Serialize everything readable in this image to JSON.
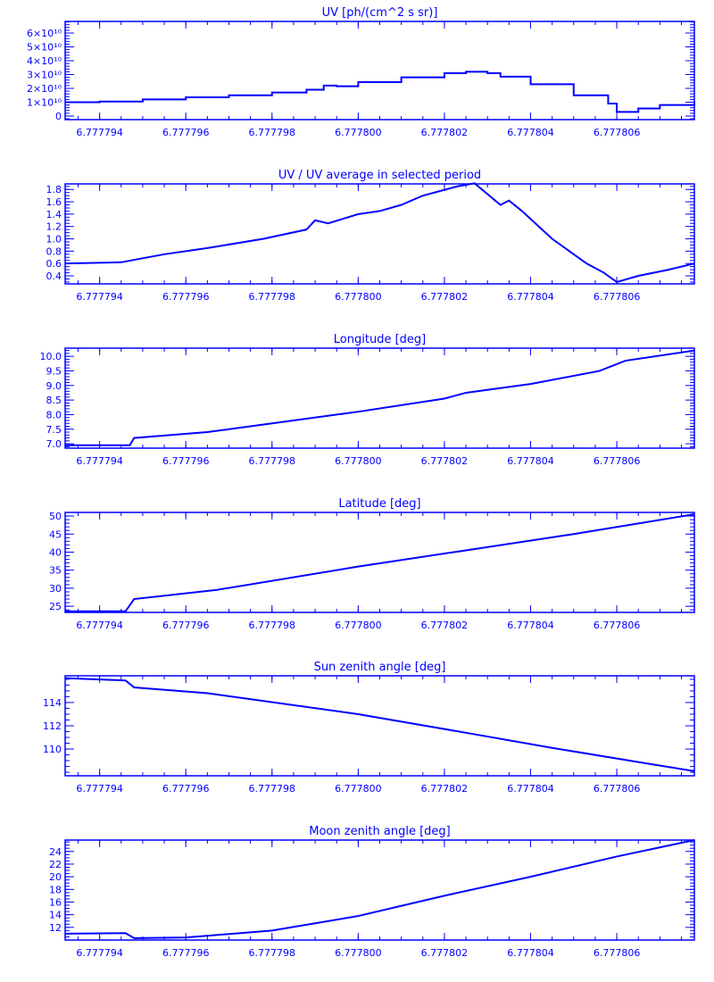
{
  "colors": {
    "ink": "#0000ff",
    "background": "#ffffff"
  },
  "chart_data": [
    {
      "type": "line",
      "step": true,
      "title": "UV [ph/(cm^2 s sr)]",
      "xlim": [
        6.7777932,
        6.7778078
      ],
      "ylim": [
        -0.26,
        6.84
      ],
      "y_scale_note": "values in units of 1e10",
      "xticks": [
        "6.777794",
        "6.777796",
        "6.777798",
        "6.777800",
        "6.777802",
        "6.777804",
        "6.777806"
      ],
      "yticks": [
        {
          "v": 0,
          "label": "0"
        },
        {
          "v": 1,
          "label": "1×10¹⁰"
        },
        {
          "v": 2,
          "label": "2×10¹⁰"
        },
        {
          "v": 3,
          "label": "3×10¹⁰"
        },
        {
          "v": 4,
          "label": "4×10¹⁰"
        },
        {
          "v": 5,
          "label": "5×10¹⁰"
        },
        {
          "v": 6,
          "label": "6×10¹⁰"
        }
      ],
      "yminor": 0.2,
      "x": [
        6.7777932,
        6.777794,
        6.777795,
        6.777796,
        6.777797,
        6.777798,
        6.7777988,
        6.7777992,
        6.7777995,
        6.7778,
        6.777801,
        6.777802,
        6.7778025,
        6.777803,
        6.7778033,
        6.777804,
        6.777805,
        6.7778058,
        6.777806,
        6.7778065,
        6.777807,
        6.7778078
      ],
      "y": [
        1.0,
        1.05,
        1.2,
        1.35,
        1.5,
        1.7,
        1.9,
        2.2,
        2.15,
        2.45,
        2.8,
        3.1,
        3.2,
        3.1,
        2.85,
        2.3,
        1.5,
        0.9,
        0.3,
        0.55,
        0.8,
        1.05
      ]
    },
    {
      "type": "line",
      "title": "UV / UV average in selected period",
      "xlim": [
        6.7777932,
        6.7778078
      ],
      "ylim": [
        0.27,
        1.89
      ],
      "xticks": [
        "6.777794",
        "6.777796",
        "6.777798",
        "6.777800",
        "6.777802",
        "6.777804",
        "6.777806"
      ],
      "yticks": [
        {
          "v": 0.4,
          "label": "0.4"
        },
        {
          "v": 0.6,
          "label": "0.6"
        },
        {
          "v": 0.8,
          "label": "0.8"
        },
        {
          "v": 1.0,
          "label": "1.0"
        },
        {
          "v": 1.2,
          "label": "1.2"
        },
        {
          "v": 1.4,
          "label": "1.4"
        },
        {
          "v": 1.6,
          "label": "1.6"
        },
        {
          "v": 1.8,
          "label": "1.8"
        }
      ],
      "yminor": 0.05,
      "x": [
        6.7777932,
        6.7777945,
        6.7777955,
        6.7777965,
        6.7777978,
        6.7777988,
        6.777799,
        6.7777993,
        6.7778,
        6.7778005,
        6.777801,
        6.7778015,
        6.7778023,
        6.7778027,
        6.7778033,
        6.7778035,
        6.7778038,
        6.7778045,
        6.7778053,
        6.7778057,
        6.777806,
        6.7778065,
        6.7778072,
        6.7778078
      ],
      "y": [
        0.6,
        0.62,
        0.75,
        0.85,
        1.0,
        1.15,
        1.3,
        1.25,
        1.4,
        1.45,
        1.55,
        1.7,
        1.85,
        1.9,
        1.55,
        1.62,
        1.45,
        1.0,
        0.6,
        0.45,
        0.3,
        0.4,
        0.5,
        0.6
      ]
    },
    {
      "type": "line",
      "title": "Longitude [deg]",
      "xlim": [
        6.7777932,
        6.7778078
      ],
      "ylim": [
        6.85,
        10.28
      ],
      "xticks": [
        "6.777794",
        "6.777796",
        "6.777798",
        "6.777800",
        "6.777802",
        "6.777804",
        "6.777806"
      ],
      "yticks": [
        {
          "v": 7.0,
          "label": "7.0"
        },
        {
          "v": 7.5,
          "label": "7.5"
        },
        {
          "v": 8.0,
          "label": "8.0"
        },
        {
          "v": 8.5,
          "label": "8.5"
        },
        {
          "v": 9.0,
          "label": "9.0"
        },
        {
          "v": 9.5,
          "label": "9.5"
        },
        {
          "v": 10.0,
          "label": "10.0"
        }
      ],
      "yminor": 0.1,
      "x": [
        6.7777932,
        6.7777947,
        6.7777948,
        6.7777965,
        6.777798,
        6.7778,
        6.777802,
        6.7778025,
        6.777804,
        6.7778056,
        6.7778062,
        6.7778078
      ],
      "y": [
        6.95,
        6.95,
        7.2,
        7.4,
        7.7,
        8.1,
        8.55,
        8.75,
        9.05,
        9.5,
        9.85,
        10.2
      ]
    },
    {
      "type": "line",
      "title": "Latitude [deg]",
      "xlim": [
        6.7777932,
        6.7778078
      ],
      "ylim": [
        23.3,
        51
      ],
      "xticks": [
        "6.777794",
        "6.777796",
        "6.777798",
        "6.777800",
        "6.777802",
        "6.777804",
        "6.777806"
      ],
      "yticks": [
        {
          "v": 25,
          "label": "25"
        },
        {
          "v": 30,
          "label": "30"
        },
        {
          "v": 35,
          "label": "35"
        },
        {
          "v": 40,
          "label": "40"
        },
        {
          "v": 45,
          "label": "45"
        },
        {
          "v": 50,
          "label": "50"
        }
      ],
      "yminor": 1,
      "x": [
        6.7777932,
        6.7777946,
        6.7777948,
        6.7777967,
        6.7778,
        6.7778025,
        6.777805,
        6.7778078
      ],
      "y": [
        23.6,
        23.6,
        27,
        29.5,
        36,
        40.5,
        45,
        50.5
      ]
    },
    {
      "type": "line",
      "title": "Sun zenith angle [deg]",
      "xlim": [
        6.7777932,
        6.7778078
      ],
      "ylim": [
        107.7,
        116.3
      ],
      "xticks": [
        "6.777794",
        "6.777796",
        "6.777798",
        "6.777800",
        "6.777802",
        "6.777804",
        "6.777806"
      ],
      "yticks": [
        {
          "v": 110,
          "label": "110"
        },
        {
          "v": 112,
          "label": "112"
        },
        {
          "v": 114,
          "label": "114"
        }
      ],
      "yminor": 0.5,
      "x": [
        6.7777932,
        6.7777946,
        6.7777948,
        6.7777965,
        6.7778,
        6.7778025,
        6.7778045,
        6.7778068,
        6.7778078
      ],
      "y": [
        116.1,
        115.9,
        115.3,
        114.8,
        113.0,
        111.4,
        110.1,
        108.7,
        108.1
      ]
    },
    {
      "type": "line",
      "title": "Moon zenith angle [deg]",
      "xlim": [
        6.7777932,
        6.7778078
      ],
      "ylim": [
        10.0,
        25.8
      ],
      "xticks": [
        "6.777794",
        "6.777796",
        "6.777798",
        "6.777800",
        "6.777802",
        "6.777804",
        "6.777806"
      ],
      "yticks": [
        {
          "v": 12,
          "label": "12"
        },
        {
          "v": 14,
          "label": "14"
        },
        {
          "v": 16,
          "label": "16"
        },
        {
          "v": 18,
          "label": "18"
        },
        {
          "v": 20,
          "label": "20"
        },
        {
          "v": 22,
          "label": "22"
        },
        {
          "v": 24,
          "label": "24"
        }
      ],
      "yminor": 0.5,
      "x": [
        6.7777932,
        6.7777946,
        6.7777948,
        6.777796,
        6.777798,
        6.7778,
        6.777802,
        6.777804,
        6.777806,
        6.7778078
      ],
      "y": [
        11.0,
        11.1,
        10.3,
        10.4,
        11.5,
        13.8,
        17.0,
        20.0,
        23.2,
        25.8
      ]
    }
  ]
}
